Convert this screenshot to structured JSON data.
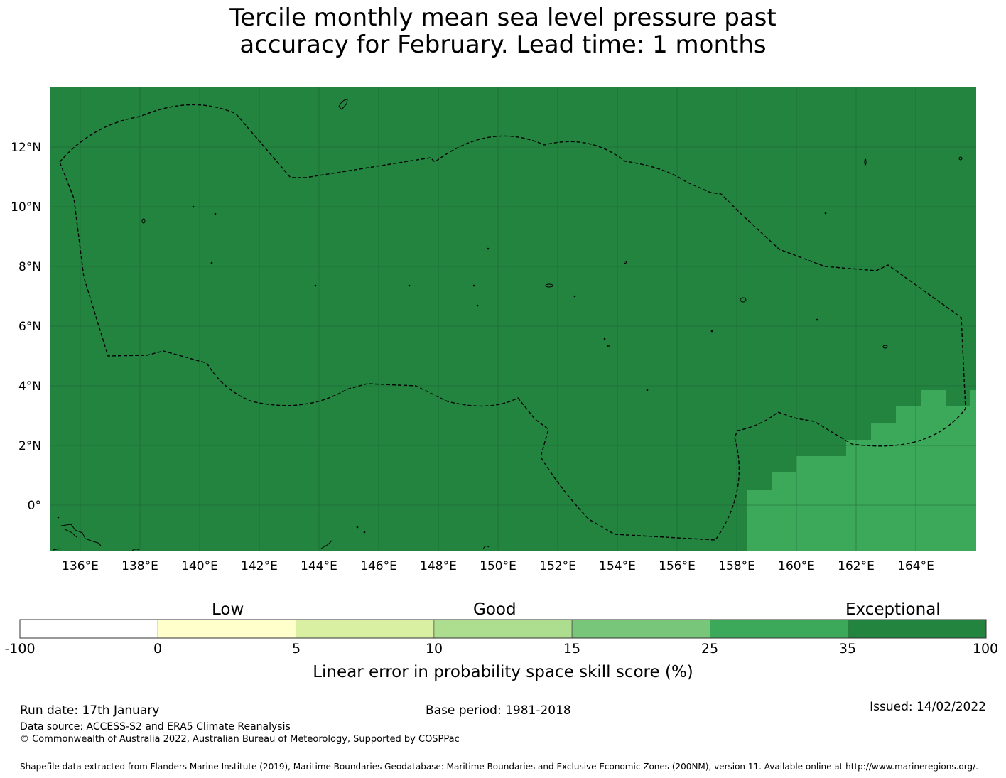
{
  "title": {
    "line1": "Tercile monthly mean sea level pressure past",
    "line2": "accuracy for February. Lead time: 1 months"
  },
  "map": {
    "lon_ticks": [
      "136°E",
      "138°E",
      "140°E",
      "142°E",
      "144°E",
      "146°E",
      "148°E",
      "150°E",
      "152°E",
      "154°E",
      "156°E",
      "158°E",
      "160°E",
      "162°E",
      "164°E"
    ],
    "lat_ticks": [
      "12°N",
      "10°N",
      "8°N",
      "6°N",
      "4°N",
      "2°N",
      "0°"
    ],
    "colors": {
      "exceptional": "#23843f",
      "high": "#3ca95a",
      "boundary": "#000000",
      "grid": "#1a5e30"
    }
  },
  "colorbar": {
    "category_labels": [
      "Low",
      "Good",
      "Exceptional"
    ],
    "tick_labels": [
      "-100",
      "0",
      "5",
      "10",
      "15",
      "25",
      "35",
      "100"
    ],
    "colors": [
      "#ffffff",
      "#ffffcc",
      "#d9f0a3",
      "#addd8e",
      "#78c679",
      "#3ca95a",
      "#23843f"
    ],
    "axis_label": "Linear error in probability space skill score (%)"
  },
  "footer": {
    "run_date": "Run date: 17th January",
    "base_period": "Base period: 1981-2018",
    "issued": "Issued: 14/02/2022",
    "data_source": "Data source: ACCESS-S2 and ERA5 Climate Reanalysis",
    "copyright": "© Commonwealth of Australia 2022, Australian Bureau of Meteorology, Supported by COSPPac",
    "shapefile": "Shapefile data extracted from Flanders Marine Institute (2019), Maritime Boundaries Geodatabase: Maritime Boundaries and Exclusive Economic Zones (200NM), version 11. Available online at http://www.marineregions.org/."
  }
}
